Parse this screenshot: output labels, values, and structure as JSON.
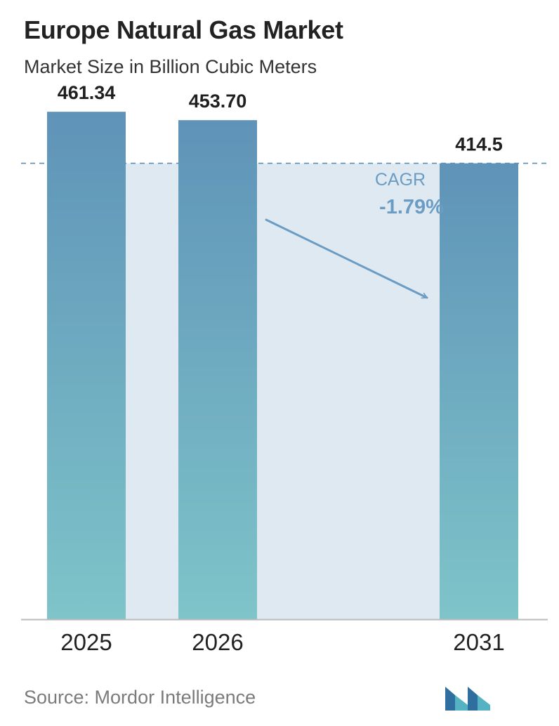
{
  "header": {
    "title": "Europe Natural Gas Market",
    "subtitle": "Market Size in Billion Cubic Meters"
  },
  "chart_data": {
    "type": "bar",
    "categories": [
      "2025",
      "2026",
      "2031"
    ],
    "values": [
      461.34,
      453.7,
      414.5
    ],
    "value_labels": [
      "461.34",
      "453.70",
      "414.5"
    ],
    "ylim": [
      0,
      500
    ],
    "grid": false,
    "annotation": {
      "label": "CAGR",
      "value": "-1.79%"
    },
    "colors": {
      "bar_top": "#5f93b8",
      "bar_bottom": "#7ec4c9",
      "band": "#dfe9f1",
      "reference_line": "#5e8fb3",
      "annotation": "#6b9cc4",
      "axis": "#bbbbbb"
    }
  },
  "footer": {
    "source": "Source: Mordor Intelligence",
    "logo_icon": "mordor-intelligence-logo-icon"
  }
}
